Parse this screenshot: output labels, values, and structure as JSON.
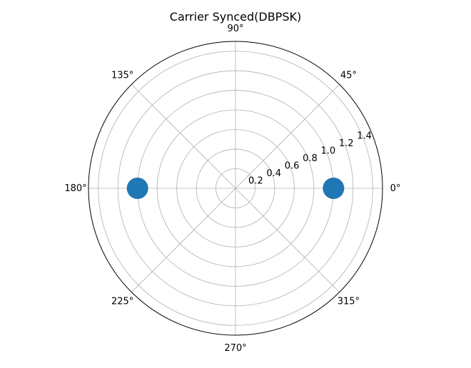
{
  "chart_data": {
    "type": "scatter",
    "projection": "polar",
    "title": "Carrier Synced(DBPSK)",
    "theta_ticks": [
      "0°",
      "45°",
      "90°",
      "135°",
      "180°",
      "225°",
      "270°",
      "315°"
    ],
    "theta_tick_angles_deg": [
      0,
      45,
      90,
      135,
      180,
      225,
      270,
      315
    ],
    "r_ticks": [
      "0.2",
      "0.4",
      "0.6",
      "0.8",
      "1.0",
      "1.2",
      "1.4"
    ],
    "r_tick_values": [
      0.2,
      0.4,
      0.6,
      0.8,
      1.0,
      1.2,
      1.4
    ],
    "rlim": [
      0,
      1.5
    ],
    "grid": true,
    "legend": "none",
    "series": [
      {
        "theta_deg": [
          0,
          180
        ],
        "r": [
          1.0,
          1.0
        ],
        "color": "#1f77b4"
      }
    ]
  }
}
